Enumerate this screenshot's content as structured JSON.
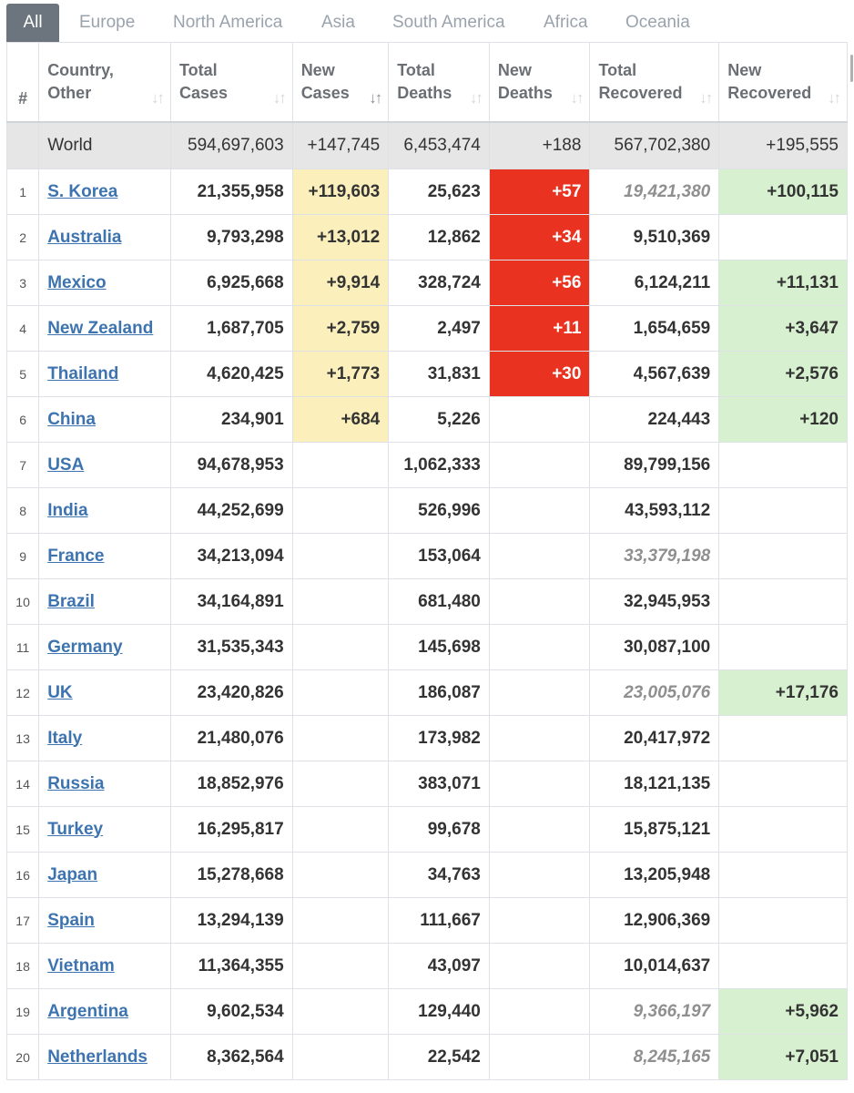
{
  "tabs": [
    "All",
    "Europe",
    "North America",
    "Asia",
    "South America",
    "Africa",
    "Oceania"
  ],
  "headers": {
    "num": "#",
    "country": [
      "Country,",
      "Other"
    ],
    "total_cases": [
      "Total",
      "Cases"
    ],
    "new_cases": [
      "New",
      "Cases"
    ],
    "total_deaths": [
      "Total",
      "Deaths"
    ],
    "new_deaths": [
      "New",
      "Deaths"
    ],
    "total_recovered": [
      "Total",
      "Recovered"
    ],
    "new_recovered": [
      "New",
      "Recovered"
    ],
    "sort_icon": "sort-arrows-icon",
    "active_sort_column": "new_cases"
  },
  "world": {
    "country": "World",
    "total_cases": "594,697,603",
    "new_cases": "+147,745",
    "total_deaths": "6,453,474",
    "new_deaths": "+188",
    "total_recovered": "567,702,380",
    "new_recovered": "+195,555"
  },
  "colors": {
    "new_cases_highlight": "#fbefbc",
    "new_deaths_highlight": "#e9321f",
    "new_recovered_highlight": "#d7f0cf",
    "link": "#3d74b0",
    "world_row": "#e6e6e6",
    "active_tab": "#6c757d"
  },
  "rows": [
    {
      "num": "1",
      "country": "S. Korea",
      "total_cases": "21,355,958",
      "new_cases": "+119,603",
      "total_deaths": "25,623",
      "new_deaths": "+57",
      "total_recovered": "19,421,380",
      "recovered_estimated": true,
      "new_recovered": "+100,115"
    },
    {
      "num": "2",
      "country": "Australia",
      "total_cases": "9,793,298",
      "new_cases": "+13,012",
      "total_deaths": "12,862",
      "new_deaths": "+34",
      "total_recovered": "9,510,369",
      "recovered_estimated": false,
      "new_recovered": ""
    },
    {
      "num": "3",
      "country": "Mexico",
      "total_cases": "6,925,668",
      "new_cases": "+9,914",
      "total_deaths": "328,724",
      "new_deaths": "+56",
      "total_recovered": "6,124,211",
      "recovered_estimated": false,
      "new_recovered": "+11,131"
    },
    {
      "num": "4",
      "country": "New Zealand",
      "total_cases": "1,687,705",
      "new_cases": "+2,759",
      "total_deaths": "2,497",
      "new_deaths": "+11",
      "total_recovered": "1,654,659",
      "recovered_estimated": false,
      "new_recovered": "+3,647"
    },
    {
      "num": "5",
      "country": "Thailand",
      "total_cases": "4,620,425",
      "new_cases": "+1,773",
      "total_deaths": "31,831",
      "new_deaths": "+30",
      "total_recovered": "4,567,639",
      "recovered_estimated": false,
      "new_recovered": "+2,576"
    },
    {
      "num": "6",
      "country": "China",
      "total_cases": "234,901",
      "new_cases": "+684",
      "total_deaths": "5,226",
      "new_deaths": "",
      "total_recovered": "224,443",
      "recovered_estimated": false,
      "new_recovered": "+120"
    },
    {
      "num": "7",
      "country": "USA",
      "total_cases": "94,678,953",
      "new_cases": "",
      "total_deaths": "1,062,333",
      "new_deaths": "",
      "total_recovered": "89,799,156",
      "recovered_estimated": false,
      "new_recovered": ""
    },
    {
      "num": "8",
      "country": "India",
      "total_cases": "44,252,699",
      "new_cases": "",
      "total_deaths": "526,996",
      "new_deaths": "",
      "total_recovered": "43,593,112",
      "recovered_estimated": false,
      "new_recovered": ""
    },
    {
      "num": "9",
      "country": "France",
      "total_cases": "34,213,094",
      "new_cases": "",
      "total_deaths": "153,064",
      "new_deaths": "",
      "total_recovered": "33,379,198",
      "recovered_estimated": true,
      "new_recovered": ""
    },
    {
      "num": "10",
      "country": "Brazil",
      "total_cases": "34,164,891",
      "new_cases": "",
      "total_deaths": "681,480",
      "new_deaths": "",
      "total_recovered": "32,945,953",
      "recovered_estimated": false,
      "new_recovered": ""
    },
    {
      "num": "11",
      "country": "Germany",
      "total_cases": "31,535,343",
      "new_cases": "",
      "total_deaths": "145,698",
      "new_deaths": "",
      "total_recovered": "30,087,100",
      "recovered_estimated": false,
      "new_recovered": ""
    },
    {
      "num": "12",
      "country": "UK",
      "total_cases": "23,420,826",
      "new_cases": "",
      "total_deaths": "186,087",
      "new_deaths": "",
      "total_recovered": "23,005,076",
      "recovered_estimated": true,
      "new_recovered": "+17,176"
    },
    {
      "num": "13",
      "country": "Italy",
      "total_cases": "21,480,076",
      "new_cases": "",
      "total_deaths": "173,982",
      "new_deaths": "",
      "total_recovered": "20,417,972",
      "recovered_estimated": false,
      "new_recovered": ""
    },
    {
      "num": "14",
      "country": "Russia",
      "total_cases": "18,852,976",
      "new_cases": "",
      "total_deaths": "383,071",
      "new_deaths": "",
      "total_recovered": "18,121,135",
      "recovered_estimated": false,
      "new_recovered": ""
    },
    {
      "num": "15",
      "country": "Turkey",
      "total_cases": "16,295,817",
      "new_cases": "",
      "total_deaths": "99,678",
      "new_deaths": "",
      "total_recovered": "15,875,121",
      "recovered_estimated": false,
      "new_recovered": ""
    },
    {
      "num": "16",
      "country": "Japan",
      "total_cases": "15,278,668",
      "new_cases": "",
      "total_deaths": "34,763",
      "new_deaths": "",
      "total_recovered": "13,205,948",
      "recovered_estimated": false,
      "new_recovered": ""
    },
    {
      "num": "17",
      "country": "Spain",
      "total_cases": "13,294,139",
      "new_cases": "",
      "total_deaths": "111,667",
      "new_deaths": "",
      "total_recovered": "12,906,369",
      "recovered_estimated": false,
      "new_recovered": ""
    },
    {
      "num": "18",
      "country": "Vietnam",
      "total_cases": "11,364,355",
      "new_cases": "",
      "total_deaths": "43,097",
      "new_deaths": "",
      "total_recovered": "10,014,637",
      "recovered_estimated": false,
      "new_recovered": ""
    },
    {
      "num": "19",
      "country": "Argentina",
      "total_cases": "9,602,534",
      "new_cases": "",
      "total_deaths": "129,440",
      "new_deaths": "",
      "total_recovered": "9,366,197",
      "recovered_estimated": true,
      "new_recovered": "+5,962"
    },
    {
      "num": "20",
      "country": "Netherlands",
      "total_cases": "8,362,564",
      "new_cases": "",
      "total_deaths": "22,542",
      "new_deaths": "",
      "total_recovered": "8,245,165",
      "recovered_estimated": true,
      "new_recovered": "+7,051"
    }
  ]
}
